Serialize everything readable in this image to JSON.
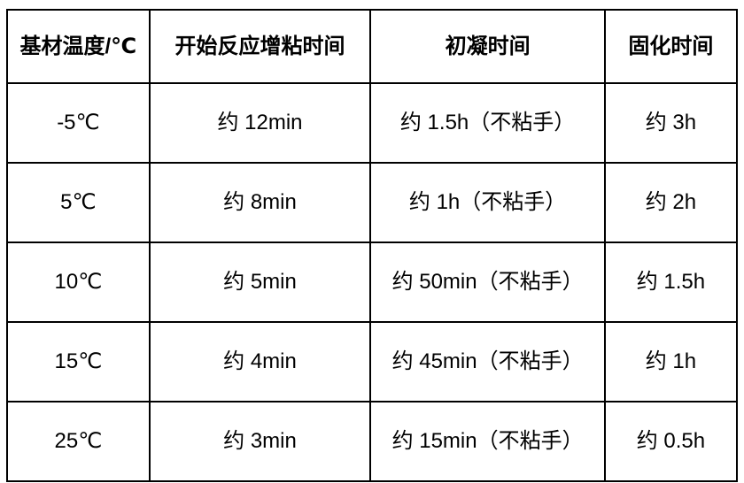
{
  "table": {
    "columns": [
      {
        "label": "基材温度/℃"
      },
      {
        "label": "开始反应增粘时间"
      },
      {
        "label": "初凝时间"
      },
      {
        "label": "固化时间"
      }
    ],
    "rows": [
      [
        "-5℃",
        "约 12min",
        "约 1.5h（不粘手）",
        "约 3h"
      ],
      [
        "5℃",
        "约 8min",
        "约 1h（不粘手）",
        "约 2h"
      ],
      [
        "10℃",
        "约 5min",
        "约 50min（不粘手）",
        "约 1.5h"
      ],
      [
        "15℃",
        "约 4min",
        "约 45min（不粘手）",
        "约 1h"
      ],
      [
        "25℃",
        "约 3min",
        "约 15min（不粘手）",
        "约 0.5h"
      ]
    ]
  },
  "colors": {
    "border": "#000000",
    "text": "#000000",
    "background": "#ffffff"
  }
}
